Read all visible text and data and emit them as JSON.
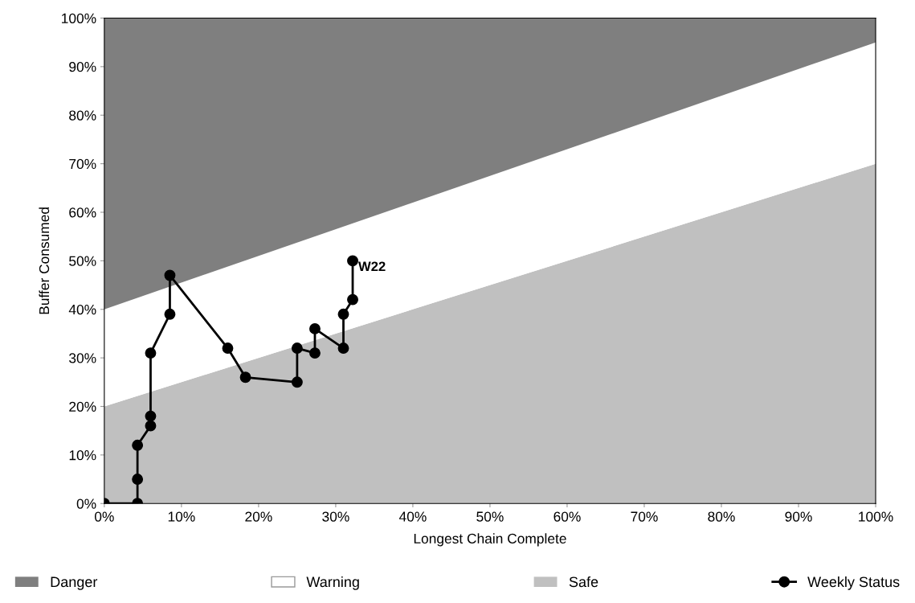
{
  "chart_data": {
    "type": "area",
    "stacked": true,
    "xlabel": "Longest Chain Complete",
    "ylabel": "Buffer Consumed",
    "x": [
      0,
      100
    ],
    "series": [
      {
        "name": "Safe",
        "color": "#c0c0c0",
        "values": [
          20,
          70
        ]
      },
      {
        "name": "Warning",
        "color": "#ffffff",
        "values": [
          20,
          25
        ]
      },
      {
        "name": "Danger",
        "color": "#7f7f7f",
        "values": [
          60,
          5
        ]
      },
      {
        "name": "Weekly Status",
        "type": "line",
        "color": "#000000",
        "marker": "circle",
        "line_style": "solid",
        "x": [
          0,
          4.3,
          4.3,
          4.3,
          6,
          6,
          6,
          8.5,
          8.5,
          16,
          18.3,
          25,
          25,
          27.3,
          27.3,
          31,
          31,
          32.2,
          32.2
        ],
        "values": [
          0,
          0,
          5,
          12,
          16,
          18,
          31,
          39,
          47,
          32,
          26,
          25,
          32,
          31,
          36,
          32,
          39,
          42,
          50
        ]
      }
    ],
    "annotations": [
      {
        "text": "W22",
        "x": 32.2,
        "y": 50
      }
    ],
    "xlim": [
      0,
      100
    ],
    "ylim": [
      0,
      100
    ],
    "xticks": [
      {
        "value": 0,
        "label": "0%"
      },
      {
        "value": 10,
        "label": "10%"
      },
      {
        "value": 20,
        "label": "20%"
      },
      {
        "value": 30,
        "label": "30%"
      },
      {
        "value": 40,
        "label": "40%"
      },
      {
        "value": 50,
        "label": "50%"
      },
      {
        "value": 60,
        "label": "60%"
      },
      {
        "value": 70,
        "label": "70%"
      },
      {
        "value": 80,
        "label": "80%"
      },
      {
        "value": 90,
        "label": "90%"
      },
      {
        "value": 100,
        "label": "100%"
      }
    ],
    "yticks": [
      {
        "value": 0,
        "label": "0%"
      },
      {
        "value": 10,
        "label": "10%"
      },
      {
        "value": 20,
        "label": "20%"
      },
      {
        "value": 30,
        "label": "30%"
      },
      {
        "value": 40,
        "label": "40%"
      },
      {
        "value": 50,
        "label": "50%"
      },
      {
        "value": 60,
        "label": "60%"
      },
      {
        "value": 70,
        "label": "70%"
      },
      {
        "value": 80,
        "label": "80%"
      },
      {
        "value": 90,
        "label": "90%"
      },
      {
        "value": 100,
        "label": "100%"
      }
    ],
    "grid": false,
    "legend": "bottom"
  }
}
